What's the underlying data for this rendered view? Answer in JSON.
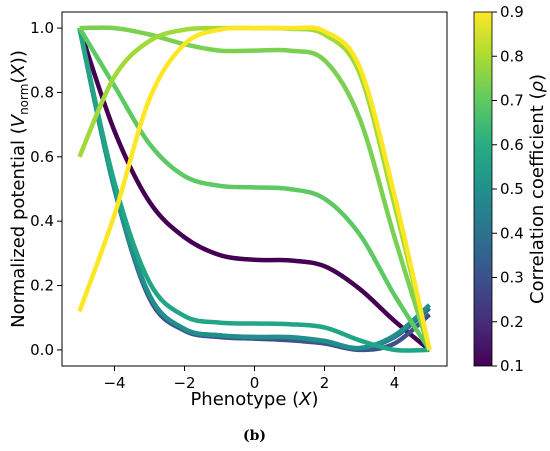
{
  "chart_data": {
    "type": "line",
    "xlabel": "Phenotype (X)",
    "ylabel": "Normalized potential (V_norm(X))",
    "xlim": [
      -5.5,
      5.5
    ],
    "ylim": [
      -0.05,
      1.05
    ],
    "x_ticks": [
      "−4",
      "−2",
      "0",
      "2",
      "4"
    ],
    "x_tick_values": [
      -4,
      -2,
      0,
      2,
      4
    ],
    "y_ticks": [
      "0.0",
      "0.2",
      "0.4",
      "0.6",
      "0.8",
      "1.0"
    ],
    "y_tick_values": [
      0.0,
      0.2,
      0.4,
      0.6,
      0.8,
      1.0
    ],
    "colorbar": {
      "label": "Correlation coefficient (ρ)",
      "colormap": "viridis",
      "range": [
        0.1,
        0.9
      ],
      "ticks": [
        "0.1",
        "0.2",
        "0.3",
        "0.4",
        "0.5",
        "0.6",
        "0.7",
        "0.8",
        "0.9"
      ],
      "tick_values": [
        0.1,
        0.2,
        0.3,
        0.4,
        0.5,
        0.6,
        0.7,
        0.8,
        0.9
      ]
    },
    "series": [
      {
        "rho": 0.1,
        "color": "#440154",
        "x": [
          -5,
          -4,
          -3,
          -2,
          -1,
          0,
          1,
          2,
          3,
          4,
          5
        ],
        "y": [
          1.0,
          0.68,
          0.46,
          0.35,
          0.295,
          0.28,
          0.278,
          0.26,
          0.19,
          0.09,
          0.0
        ]
      },
      {
        "rho": 0.2,
        "color": "#3b528b",
        "x": [
          -5,
          -4,
          -3,
          -2,
          -1,
          0,
          1,
          2,
          3,
          4,
          5
        ],
        "y": [
          1.0,
          0.5,
          0.16,
          0.06,
          0.04,
          0.035,
          0.03,
          0.02,
          0.0,
          0.02,
          0.11
        ]
      },
      {
        "rho": 0.3,
        "color": "#31688e",
        "x": [
          -5,
          -4,
          -3,
          -2,
          -1,
          0,
          1,
          2,
          3,
          4,
          5
        ],
        "y": [
          1.0,
          0.5,
          0.17,
          0.065,
          0.045,
          0.04,
          0.038,
          0.025,
          0.005,
          0.04,
          0.13
        ]
      },
      {
        "rho": 0.4,
        "color": "#21908d",
        "x": [
          -5,
          -4,
          -3,
          -2,
          -1,
          0,
          1,
          2,
          3,
          4,
          5
        ],
        "y": [
          1.0,
          0.5,
          0.17,
          0.065,
          0.045,
          0.04,
          0.04,
          0.028,
          0.006,
          0.045,
          0.14
        ]
      },
      {
        "rho": 0.5,
        "color": "#21a685",
        "x": [
          -5,
          -4,
          -3,
          -2,
          -1,
          0,
          1,
          2,
          3,
          4,
          5
        ],
        "y": [
          1.0,
          0.52,
          0.21,
          0.105,
          0.085,
          0.082,
          0.08,
          0.07,
          0.03,
          0.0,
          0.0
        ]
      },
      {
        "rho": 0.6,
        "color": "#5ec962",
        "x": [
          -5,
          -4,
          -3,
          -2,
          -1,
          0,
          1,
          2,
          3,
          4,
          5
        ],
        "y": [
          1.0,
          0.82,
          0.64,
          0.54,
          0.51,
          0.505,
          0.5,
          0.47,
          0.36,
          0.17,
          0.0
        ]
      },
      {
        "rho": 0.7,
        "color": "#7ad151",
        "x": [
          -5,
          -4,
          -3,
          -2,
          -1,
          0,
          1,
          2,
          3,
          4,
          5
        ],
        "y": [
          1.0,
          1.0,
          0.98,
          0.95,
          0.93,
          0.93,
          0.93,
          0.9,
          0.72,
          0.35,
          0.0
        ]
      },
      {
        "rho": 0.8,
        "color": "#a0da39",
        "x": [
          -5,
          -4,
          -3,
          -2,
          -1,
          0,
          1,
          2,
          3,
          4,
          5
        ],
        "y": [
          0.6,
          0.85,
          0.96,
          0.995,
          1.0,
          1.0,
          0.998,
          0.98,
          0.86,
          0.45,
          0.0
        ]
      },
      {
        "rho": 0.9,
        "color": "#fde725",
        "x": [
          -5,
          -4,
          -3,
          -2,
          -1,
          0,
          1,
          2,
          3,
          4,
          5
        ],
        "y": [
          0.12,
          0.42,
          0.78,
          0.95,
          0.995,
          1.0,
          1.0,
          0.99,
          0.88,
          0.48,
          0.0
        ]
      }
    ]
  },
  "caption": "(b)"
}
